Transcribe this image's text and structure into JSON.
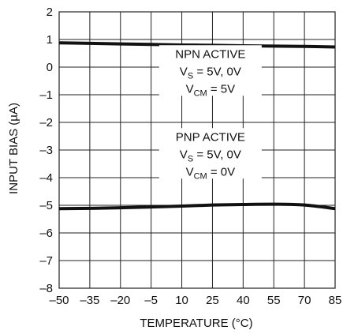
{
  "chart_data": {
    "type": "line",
    "title": "",
    "xlabel": "TEMPERATURE (°C)",
    "ylabel": "INPUT BIAS (µA)",
    "xlim": [
      -50,
      85
    ],
    "ylim": [
      -8,
      2
    ],
    "xticks": [
      -50,
      -35,
      -20,
      -5,
      10,
      25,
      40,
      55,
      70,
      85
    ],
    "yticks": [
      2,
      1,
      0,
      -1,
      -2,
      -3,
      -4,
      -5,
      -6,
      -7,
      -8
    ],
    "xtick_labels": [
      "–50",
      "–35",
      "–20",
      "–5",
      "10",
      "25",
      "40",
      "55",
      "70",
      "85"
    ],
    "ytick_labels": [
      "2",
      "1",
      "0",
      "–1",
      "–2",
      "–3",
      "–4",
      "–5",
      "–6",
      "–7",
      "–8"
    ],
    "grid": true,
    "series": [
      {
        "x": [
          -50,
          -35,
          -20,
          -5,
          10,
          25,
          40,
          55,
          70,
          85
        ],
        "y": [
          0.88,
          0.86,
          0.84,
          0.82,
          0.8,
          0.79,
          0.77,
          0.76,
          0.75,
          0.73
        ]
      },
      {
        "x": [
          -50,
          -35,
          -20,
          -5,
          10,
          25,
          40,
          55,
          70,
          85
        ],
        "y": [
          -5.12,
          -5.11,
          -5.09,
          -5.06,
          -5.03,
          -4.99,
          -4.97,
          -4.96,
          -4.99,
          -5.12
        ]
      }
    ],
    "annotations": [
      {
        "lines": [
          {
            "main": "NPN ACTIVE",
            "sub": "",
            "tail": ""
          },
          {
            "main": "V",
            "sub": "S",
            "tail": " = 5V, 0V"
          },
          {
            "main": "V",
            "sub": "CM",
            "tail": " = 5V"
          }
        ],
        "x": 24,
        "y": 0.45
      },
      {
        "lines": [
          {
            "main": "PNP ACTIVE",
            "sub": "",
            "tail": ""
          },
          {
            "main": "V",
            "sub": "S",
            "tail": " = 5V, 0V"
          },
          {
            "main": "V",
            "sub": "CM",
            "tail": " = 0V"
          }
        ],
        "x": 24,
        "y": -2.55
      }
    ],
    "colors": {
      "line": "#111111",
      "grid": "#222222",
      "background": "#ffffff"
    }
  }
}
